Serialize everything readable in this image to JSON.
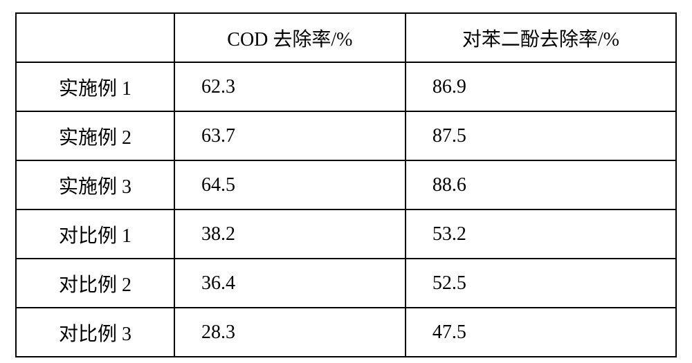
{
  "table": {
    "type": "table",
    "border_color": "#000000",
    "border_width": 2,
    "background_color": "#ffffff",
    "text_color": "#000000",
    "font_size_pt": 21,
    "font_family": "SimSun",
    "col_widths_pct": [
      24,
      35,
      41
    ],
    "header_align": "center",
    "label_align": "center",
    "value_align": "left",
    "columns": [
      "",
      "COD 去除率/%",
      "对苯二酚去除率/%"
    ],
    "rows": [
      {
        "label": "实施例 1",
        "cod": "62.3",
        "hq": "86.9"
      },
      {
        "label": "实施例 2",
        "cod": "63.7",
        "hq": "87.5"
      },
      {
        "label": "实施例 3",
        "cod": "64.5",
        "hq": "88.6"
      },
      {
        "label": "对比例 1",
        "cod": "38.2",
        "hq": "53.2"
      },
      {
        "label": "对比例 2",
        "cod": "36.4",
        "hq": "52.5"
      },
      {
        "label": "对比例 3",
        "cod": "28.3",
        "hq": "47.5"
      }
    ]
  }
}
